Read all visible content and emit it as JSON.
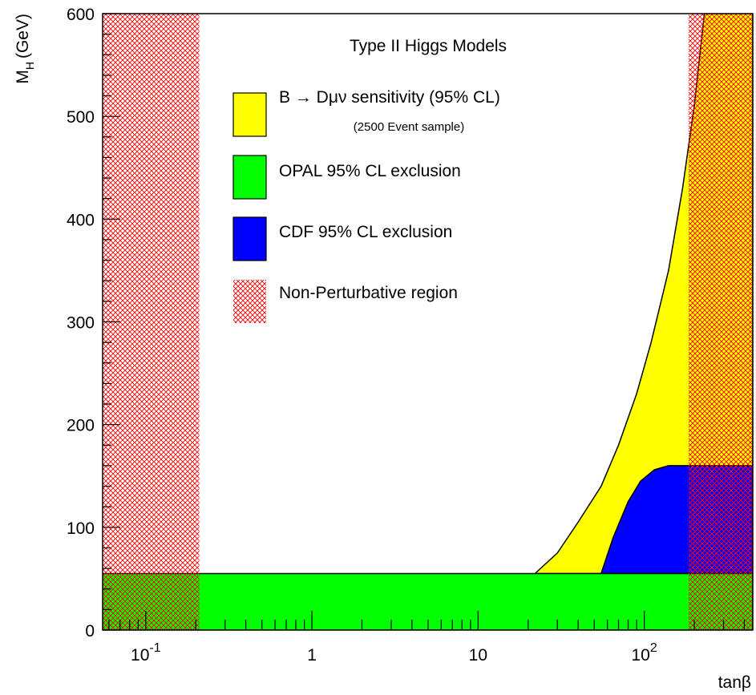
{
  "chart_data": {
    "type": "area",
    "title": "Type II Higgs Models",
    "xlabel": "tanβ",
    "ylabel": "M",
    "ylabel_sub": "H",
    "ylabel_unit": "(GeV)",
    "x_scale": "log",
    "xlim": [
      0.055,
      450
    ],
    "ylim": [
      0,
      600
    ],
    "y_ticks": [
      0,
      100,
      200,
      300,
      400,
      500,
      600
    ],
    "y_tick_labels": [
      "0",
      "100",
      "200",
      "300",
      "400",
      "500",
      "600"
    ],
    "x_ticks": [
      0.1,
      1,
      10,
      100
    ],
    "x_tick_labels": [
      {
        "base": "10",
        "exp": "-1"
      },
      {
        "base": "1",
        "exp": ""
      },
      {
        "base": "10",
        "exp": ""
      },
      {
        "base": "10",
        "exp": "2"
      }
    ],
    "grid": false,
    "legend_position": "upper-center",
    "legend": [
      {
        "name": "B → Dμν sensitivity (95% CL)",
        "sublabel": "(2500 Event sample)",
        "color": "#ffff00",
        "style": "solid"
      },
      {
        "name": "OPAL 95% CL exclusion",
        "color": "#00ff00",
        "style": "solid"
      },
      {
        "name": "CDF 95% CL exclusion",
        "color": "#0000ff",
        "style": "solid"
      },
      {
        "name": "Non-Perturbative region",
        "color": "#ff0000",
        "style": "hatched"
      }
    ],
    "regions": [
      {
        "name": "B → Dμν sensitivity (95% CL)",
        "color": "#ffff00",
        "boundary": [
          {
            "tanb": 22,
            "mh": 55
          },
          {
            "tanb": 30,
            "mh": 75
          },
          {
            "tanb": 40,
            "mh": 105
          },
          {
            "tanb": 55,
            "mh": 140
          },
          {
            "tanb": 70,
            "mh": 180
          },
          {
            "tanb": 90,
            "mh": 230
          },
          {
            "tanb": 110,
            "mh": 280
          },
          {
            "tanb": 140,
            "mh": 350
          },
          {
            "tanb": 170,
            "mh": 430
          },
          {
            "tanb": 200,
            "mh": 510
          },
          {
            "tanb": 230,
            "mh": 600
          }
        ]
      },
      {
        "name": "CDF 95% CL exclusion",
        "color": "#0000ff",
        "boundary": [
          {
            "tanb": 55,
            "mh": 55
          },
          {
            "tanb": 65,
            "mh": 90
          },
          {
            "tanb": 80,
            "mh": 125
          },
          {
            "tanb": 95,
            "mh": 145
          },
          {
            "tanb": 115,
            "mh": 156
          },
          {
            "tanb": 140,
            "mh": 160
          },
          {
            "tanb": 450,
            "mh": 160
          }
        ]
      },
      {
        "name": "OPAL 95% CL exclusion",
        "color": "#00ff00",
        "mh_max": 55
      },
      {
        "name": "Non-Perturbative region",
        "color": "#ff0000",
        "hatched": true,
        "tanb_ranges": [
          [
            0.055,
            0.21
          ],
          [
            185,
            450
          ]
        ]
      }
    ]
  }
}
